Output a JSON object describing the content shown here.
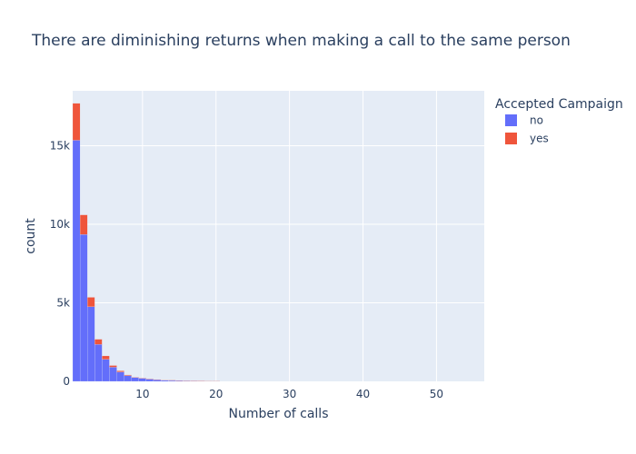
{
  "chart_data": {
    "type": "bar",
    "stacked": true,
    "title": "There are diminishing returns when making a call to the same person",
    "xlabel": "Number of calls",
    "ylabel": "count",
    "xlim": [
      0.5,
      56.5
    ],
    "ylim": [
      0,
      18500
    ],
    "x_ticks": [
      10,
      20,
      30,
      40,
      50
    ],
    "y_ticks": [
      0,
      5000,
      10000,
      15000
    ],
    "y_tick_labels": [
      "0",
      "5k",
      "10k",
      "15k"
    ],
    "grid": true,
    "legend": {
      "title": "Accepted Campaign",
      "position": "top-right"
    },
    "x": [
      1,
      2,
      3,
      4,
      5,
      6,
      7,
      8,
      9,
      10,
      11,
      12,
      13,
      14,
      15,
      16,
      17,
      18,
      19,
      20
    ],
    "series": [
      {
        "name": "no",
        "color": "#636efa",
        "values": [
          15350,
          9350,
          4750,
          2350,
          1400,
          900,
          600,
          370,
          250,
          200,
          150,
          110,
          80,
          70,
          55,
          45,
          35,
          30,
          25,
          25
        ]
      },
      {
        "name": "yes",
        "color": "#ef553b",
        "values": [
          2350,
          1250,
          600,
          330,
          220,
          110,
          70,
          40,
          20,
          15,
          10,
          8,
          5,
          4,
          3,
          2,
          2,
          1,
          1,
          1
        ]
      }
    ]
  }
}
